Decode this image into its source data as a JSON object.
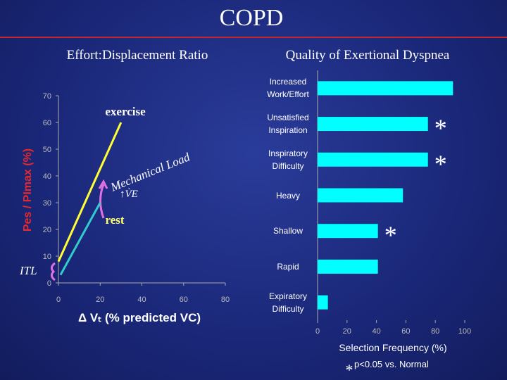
{
  "title": "COPD",
  "chart_data": [
    {
      "type": "line",
      "title": "Effort:Displacement Ratio",
      "xlabel": "Δ Vₜ (% predicted VC)",
      "ylabel": "Pes / PImax (%)",
      "xlim": [
        0,
        80
      ],
      "xticks": [
        0,
        20,
        40,
        60,
        80
      ],
      "ylim": [
        0,
        70
      ],
      "yticks": [
        0,
        10,
        20,
        30,
        40,
        50,
        60,
        70
      ],
      "series": [
        {
          "name": "exercise",
          "color": "#ffff33",
          "x": [
            0,
            30
          ],
          "values": [
            8,
            60
          ]
        },
        {
          "name": "rest",
          "color": "#33cccc",
          "x": [
            1,
            20
          ],
          "values": [
            3,
            30
          ]
        }
      ],
      "annotations": [
        "Mechanical Load",
        "↑V̇E",
        "ITL"
      ]
    },
    {
      "type": "barh",
      "title": "Quality of Exertional Dyspnea",
      "xlabel": "Selection Frequency (%)",
      "categories": [
        "Increased\nWork/Effort",
        "Unsatisfied\nInspiration",
        "Inspiratory\nDifficulty",
        "Heavy",
        "Shallow",
        "Rapid",
        "Expiratory\nDifficulty"
      ],
      "values": [
        92,
        75,
        75,
        58,
        41,
        41,
        7
      ],
      "color": "#00ffff",
      "significant": [
        false,
        true,
        true,
        false,
        true,
        false,
        false
      ],
      "marker": "*",
      "footnote": "p<0.05 vs. Normal",
      "xlim": [
        0,
        100
      ],
      "xticks": [
        0,
        20,
        40,
        60,
        80,
        100
      ]
    }
  ]
}
